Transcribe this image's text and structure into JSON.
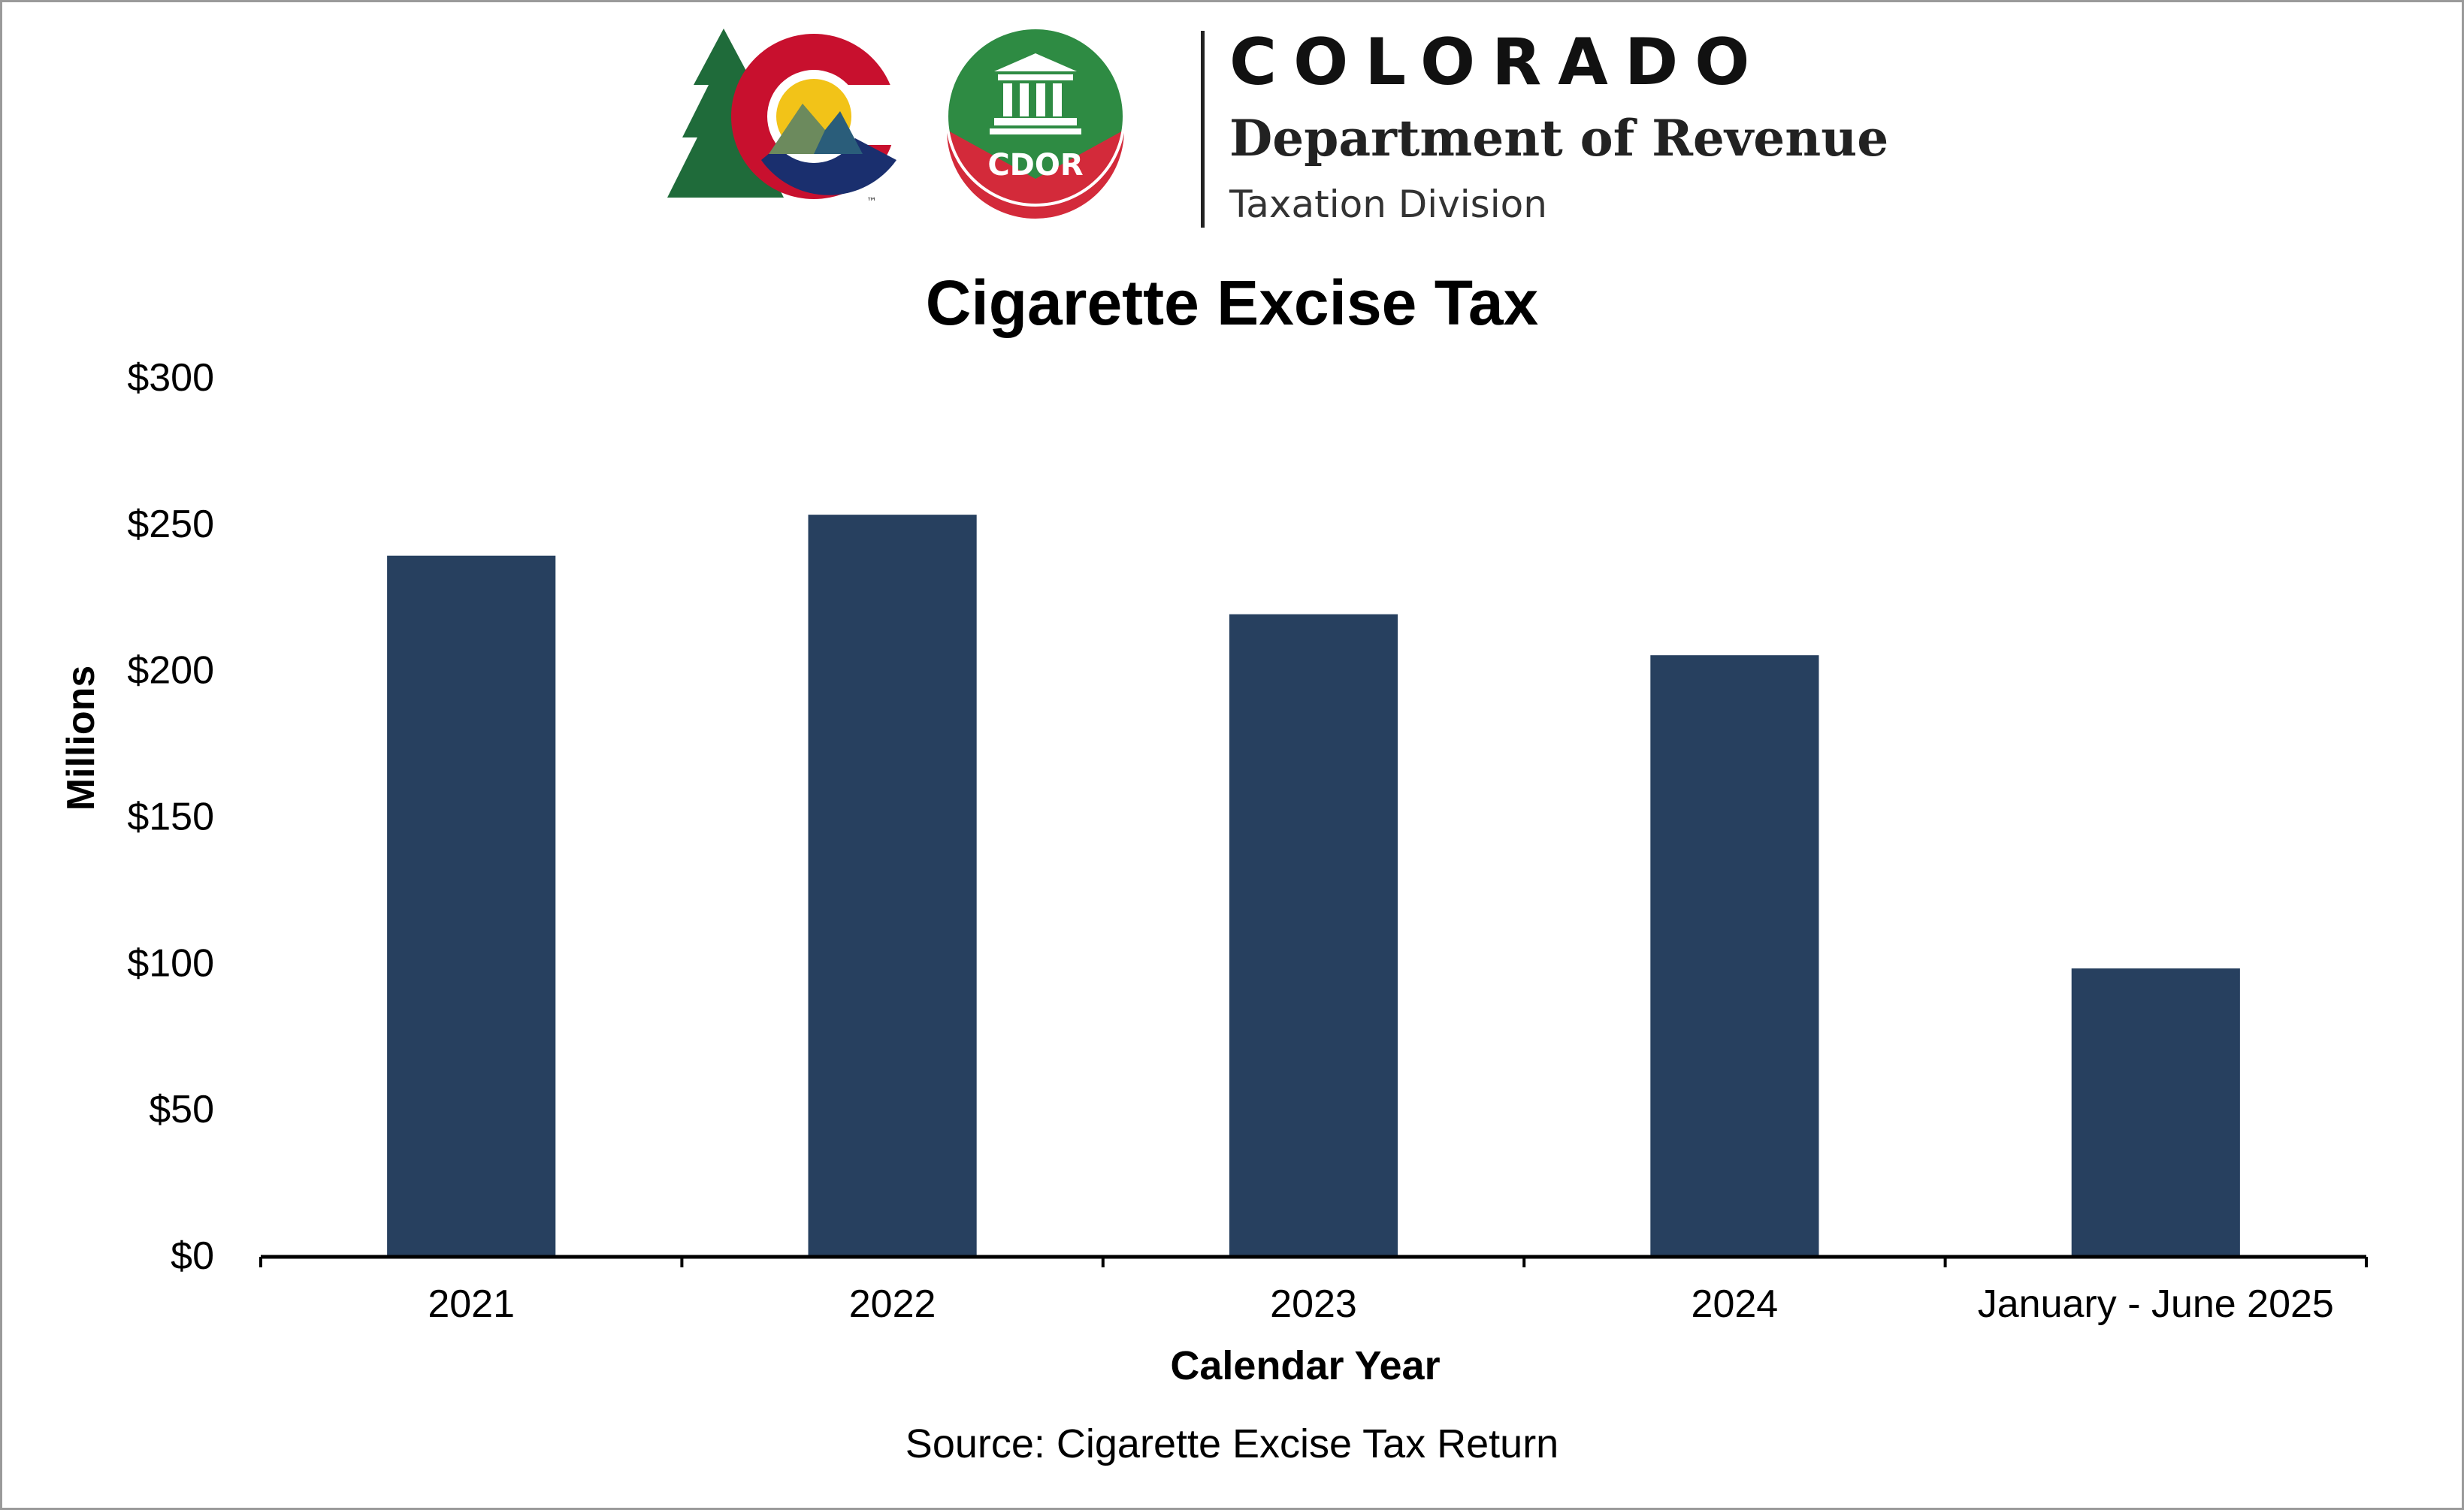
{
  "header": {
    "logo_text": "CDOR",
    "state": "COLORADO",
    "department": "Department of Revenue",
    "division": "Taxation Division"
  },
  "footer": {
    "source": "Source: Cigarette Excise Tax Return"
  },
  "colors": {
    "bar": "#27405f",
    "axis": "#000000",
    "brand_red": "#c8102e",
    "brand_green": "#1f6b3a",
    "brand_blue": "#1a2f6e",
    "brand_gold": "#f2c318"
  },
  "chart_data": {
    "type": "bar",
    "title": "Cigarette Excise Tax",
    "xlabel": "Calendar Year",
    "ylabel": "Millions",
    "categories": [
      "2021",
      "2022",
      "2023",
      "2024",
      "January - June 2025"
    ],
    "values": [
      239,
      253,
      219,
      205,
      98
    ],
    "ylim": [
      0,
      300
    ],
    "yticks": [
      0,
      50,
      100,
      150,
      200,
      250,
      300
    ],
    "ytick_labels": [
      "$0",
      "$50",
      "$100",
      "$150",
      "$200",
      "$250",
      "$300"
    ],
    "grid": false,
    "legend": "none"
  }
}
